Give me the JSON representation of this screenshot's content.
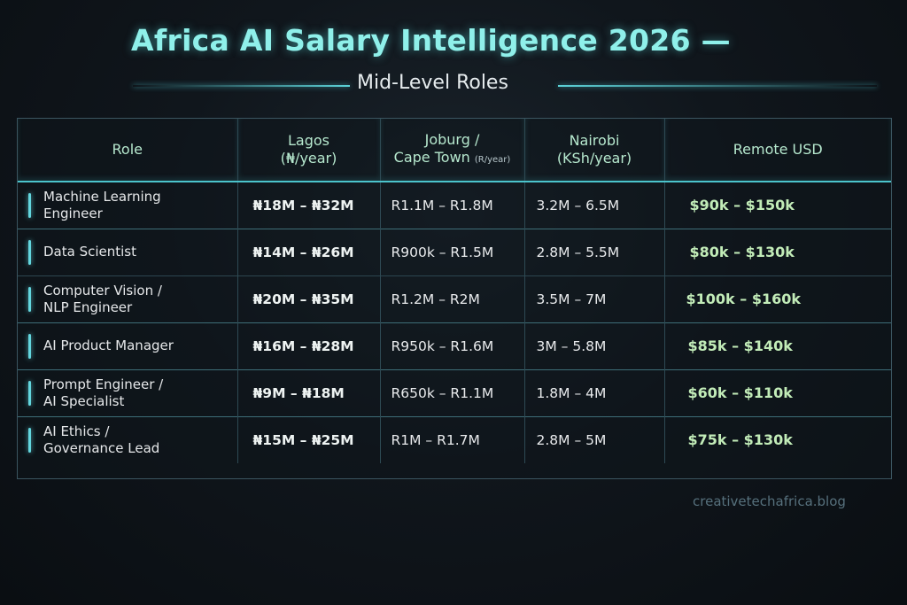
{
  "header": {
    "title": "Africa AI Salary Intelligence 2026 —",
    "subtitle": "Mid-Level Roles"
  },
  "table": {
    "headers": {
      "role": "Role",
      "lagos_line1": "Lagos",
      "lagos_line2": "(₦/year)",
      "joburg_line1": "Joburg /",
      "joburg_line2": "Cape Town",
      "joburg_unit": "(R/year)",
      "nairobi_line1": "Nairobi",
      "nairobi_line2": "(KSh/year)",
      "remote": "Remote USD"
    },
    "rows": [
      {
        "role_line1": "Machine Learning",
        "role_line2": "Engineer",
        "lagos": "₦18M – ₦32M",
        "joburg": "R1.1M – R1.8M",
        "nairobi": "3.2M – 6.5M",
        "remote": "$90k – $150k"
      },
      {
        "role_line1": "Data Scientist",
        "role_line2": "",
        "lagos": "₦14M – ₦26M",
        "joburg": "R900k – R1.5M",
        "nairobi": "2.8M – 5.5M",
        "remote": "$80k – $130k"
      },
      {
        "role_line1": "Computer Vision /",
        "role_line2": "NLP Engineer",
        "lagos": "₦20M – ₦35M",
        "joburg": "R1.2M – R2M",
        "nairobi": "3.5M – 7M",
        "remote": "$100k – $160k"
      },
      {
        "role_line1": "AI Product Manager",
        "role_line2": "",
        "lagos": "₦16M – ₦28M",
        "joburg": "R950k – R1.6M",
        "nairobi": "3M – 5.8M",
        "remote": "$85k – $140k"
      },
      {
        "role_line1": "Prompt Engineer /",
        "role_line2": "AI Specialist",
        "lagos": "₦9M – ₦18M",
        "joburg": "R650k – R1.1M",
        "nairobi": "1.8M – 4M",
        "remote": "$60k – $110k"
      },
      {
        "role_line1": "AI Ethics /",
        "role_line2": "Governance Lead",
        "lagos": "₦15M – ₦25M",
        "joburg": "R1M – R1.7M",
        "nairobi": "2.8M – 5M",
        "remote": "$75k – $130k"
      }
    ]
  },
  "footer": {
    "site": "creativetechafrica.blog"
  },
  "colors": {
    "title": "#8ff0ea",
    "accent": "#63d6de",
    "header_text": "#b6e8ce",
    "remote_text": "#c2ecb8",
    "background": "#10161c"
  }
}
